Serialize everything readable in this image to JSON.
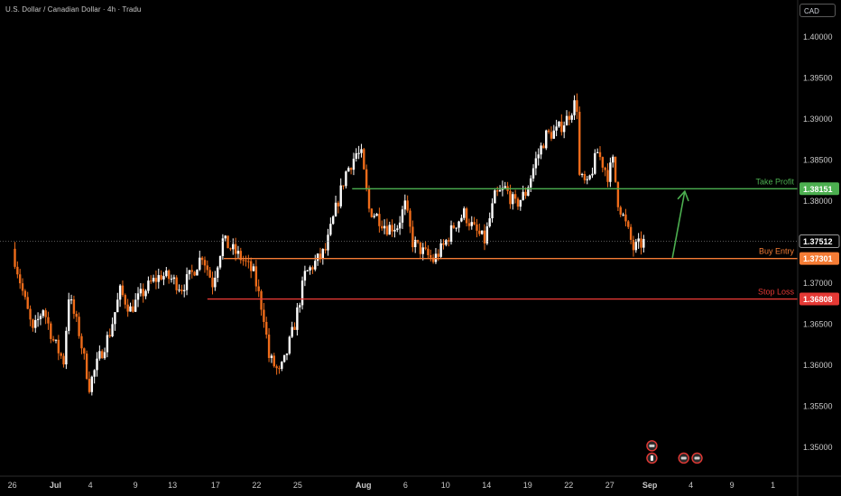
{
  "header": {
    "title": "U.S. Dollar / Canadian Dollar · 4h · Tradu",
    "currency": "CAD"
  },
  "chart_data": {
    "type": "candlestick",
    "ylim": [
      1.3465,
      1.4045
    ],
    "y_ticks": [
      1.4,
      1.395,
      1.39,
      1.385,
      1.38,
      1.37,
      1.365,
      1.36,
      1.355,
      1.35
    ],
    "y_tick_labels": [
      "1.40000",
      "1.39500",
      "1.39000",
      "1.38500",
      "1.38000",
      "1.37000",
      "1.36500",
      "1.36000",
      "1.35500",
      "1.35000"
    ],
    "x_ticks": [
      {
        "label": "26",
        "x": 0.0
      },
      {
        "label": "Jul",
        "x": 8.4,
        "bold": true
      },
      {
        "label": "4",
        "x": 15.2
      },
      {
        "label": "9",
        "x": 24.0
      },
      {
        "label": "13",
        "x": 31.2
      },
      {
        "label": "17",
        "x": 39.6
      },
      {
        "label": "22",
        "x": 47.6
      },
      {
        "label": "25",
        "x": 55.6
      },
      {
        "label": "Aug",
        "x": 68.4,
        "bold": true
      },
      {
        "label": "6",
        "x": 76.6
      },
      {
        "label": "10",
        "x": 84.4
      },
      {
        "label": "14",
        "x": 92.4
      },
      {
        "label": "19",
        "x": 100.4
      },
      {
        "label": "22",
        "x": 108.4
      },
      {
        "label": "27",
        "x": 116.4
      },
      {
        "label": "Sep",
        "x": 124.2,
        "bold": true
      },
      {
        "label": "4",
        "x": 132.2
      },
      {
        "label": "9",
        "x": 140.2
      },
      {
        "label": "1",
        "x": 148.2
      }
    ],
    "x_range": [
      -2.4,
      153.0
    ],
    "anchors": [
      [
        0,
        1.3742
      ],
      [
        2,
        1.369
      ],
      [
        4,
        1.364
      ],
      [
        6,
        1.367
      ],
      [
        8,
        1.363
      ],
      [
        10,
        1.3605
      ],
      [
        11,
        1.3685
      ],
      [
        13,
        1.364
      ],
      [
        15,
        1.3575
      ],
      [
        17,
        1.361
      ],
      [
        19,
        1.364
      ],
      [
        21,
        1.369
      ],
      [
        23,
        1.3668
      ],
      [
        25,
        1.3685
      ],
      [
        27,
        1.37
      ],
      [
        29,
        1.371
      ],
      [
        31,
        1.3705
      ],
      [
        33,
        1.3695
      ],
      [
        35,
        1.3712
      ],
      [
        37,
        1.3735
      ],
      [
        39,
        1.37
      ],
      [
        41,
        1.3752
      ],
      [
        43,
        1.374
      ],
      [
        45,
        1.3728
      ],
      [
        47,
        1.3712
      ],
      [
        49,
        1.366
      ],
      [
        50,
        1.361
      ],
      [
        52,
        1.359
      ],
      [
        53,
        1.3605
      ],
      [
        55,
        1.365
      ],
      [
        57,
        1.371
      ],
      [
        59,
        1.3725
      ],
      [
        61,
        1.374
      ],
      [
        63,
        1.379
      ],
      [
        65,
        1.3835
      ],
      [
        67,
        1.3858
      ],
      [
        68,
        1.3855
      ],
      [
        69.5,
        1.379
      ],
      [
        71,
        1.3782
      ],
      [
        73,
        1.3768
      ],
      [
        75,
        1.377
      ],
      [
        76.5,
        1.3795
      ],
      [
        78,
        1.375
      ],
      [
        80,
        1.3738
      ],
      [
        82,
        1.3728
      ],
      [
        84,
        1.3745
      ],
      [
        86,
        1.377
      ],
      [
        88,
        1.3785
      ],
      [
        90,
        1.3765
      ],
      [
        92,
        1.3752
      ],
      [
        94,
        1.3805
      ],
      [
        96,
        1.3815
      ],
      [
        98,
        1.3795
      ],
      [
        100,
        1.381
      ],
      [
        102,
        1.385
      ],
      [
        104,
        1.388
      ],
      [
        106,
        1.3885
      ],
      [
        108,
        1.39
      ],
      [
        109.5,
        1.3918
      ],
      [
        110,
        1.3915
      ],
      [
        110.5,
        1.383
      ],
      [
        112,
        1.3818
      ],
      [
        114,
        1.386
      ],
      [
        116,
        1.3832
      ],
      [
        117,
        1.3848
      ],
      [
        118,
        1.38
      ],
      [
        120,
        1.3762
      ],
      [
        121,
        1.3742
      ],
      [
        123,
        1.375
      ]
    ],
    "price_line": {
      "value": 1.37512,
      "label": "1.37512"
    },
    "levels": [
      {
        "name": "Take Profit",
        "value": 1.38151,
        "label": "1.38151",
        "color": "#4caf50",
        "x_start": 66.2
      },
      {
        "name": "Buy Entry",
        "value": 1.37301,
        "label": "1.37301",
        "color": "#f57c35",
        "x_start": 41.2
      },
      {
        "name": "Stop Loss",
        "value": 1.36808,
        "label": "1.36808",
        "color": "#e53935",
        "x_start": 38.0
      }
    ],
    "arrow": {
      "from": [
        128.6,
        1.3731
      ],
      "to": [
        131.0,
        1.3812
      ],
      "color": "#4caf50"
    },
    "events": [
      {
        "kind": "news",
        "x": 124.6,
        "y": 1.3502
      },
      {
        "kind": "dividend",
        "x": 124.6,
        "y": 1.3487
      },
      {
        "kind": "news",
        "x": 130.8,
        "y": 1.3487
      },
      {
        "kind": "news",
        "x": 133.4,
        "y": 1.3487
      }
    ],
    "colors": {
      "up": "#ffffff",
      "down": "#ef6c1a",
      "bg": "#000000",
      "grid": "#1a1a1a"
    }
  }
}
